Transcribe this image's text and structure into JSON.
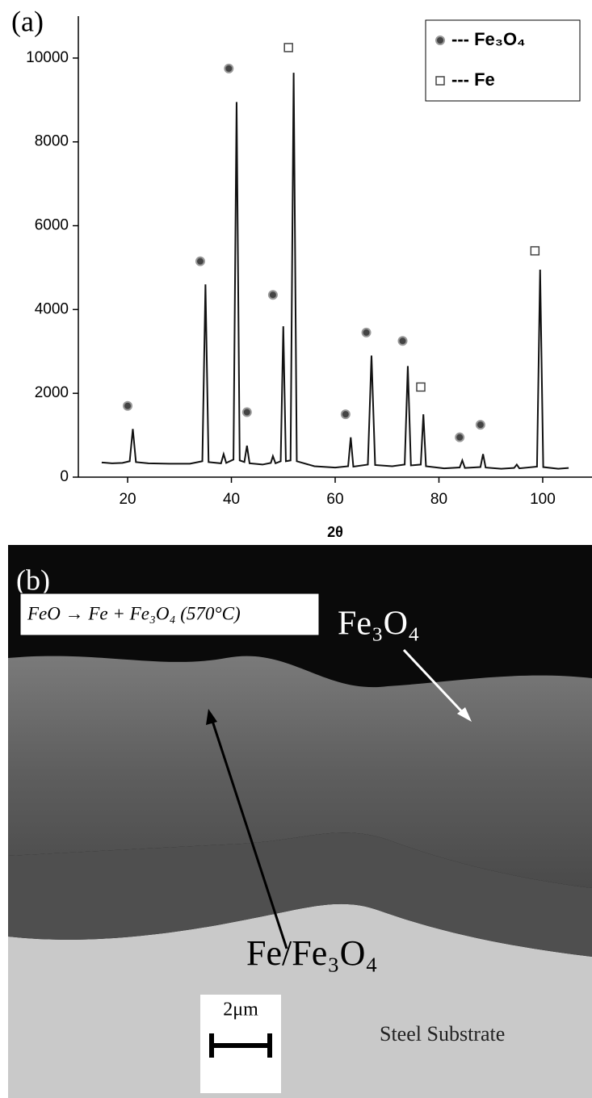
{
  "chart_data": {
    "type": "line",
    "panel_label": "(a)",
    "x_label": "2θ",
    "xlim": [
      10.5,
      109.5
    ],
    "xticks": [
      20,
      40,
      60,
      80,
      100
    ],
    "ylim": [
      0,
      11000
    ],
    "yticks": [
      0,
      2000,
      4000,
      6000,
      8000,
      10000
    ],
    "legend": "top-right",
    "series": [
      {
        "color": "#111111",
        "x": [
          15,
          17,
          19,
          20.4,
          21,
          21.6,
          24,
          28,
          32,
          34.4,
          35,
          35.6,
          38,
          38.5,
          39,
          40.4,
          41,
          41.6,
          42.5,
          43,
          43.5,
          46,
          47.6,
          48,
          48.5,
          49.5,
          50,
          50.5,
          51.4,
          52,
          52.6,
          56,
          60,
          62.5,
          63,
          63.5,
          66.3,
          67,
          67.7,
          71,
          73.4,
          74,
          74.6,
          76.5,
          77,
          77.5,
          81,
          84,
          84.5,
          85,
          88,
          88.5,
          89,
          92,
          94.5,
          95,
          95.5,
          98.9,
          99.5,
          100.1,
          103,
          105
        ],
        "values": [
          350,
          330,
          340,
          380,
          1150,
          360,
          330,
          320,
          320,
          380,
          4600,
          360,
          330,
          550,
          340,
          420,
          8950,
          400,
          360,
          750,
          330,
          300,
          340,
          500,
          330,
          380,
          3600,
          380,
          400,
          9650,
          380,
          260,
          230,
          260,
          950,
          250,
          300,
          2900,
          290,
          260,
          300,
          2650,
          280,
          300,
          1500,
          260,
          210,
          230,
          400,
          220,
          240,
          550,
          230,
          200,
          220,
          300,
          210,
          250,
          4950,
          240,
          200,
          220
        ]
      },
      {
        "name": "--- Fe₃O₄",
        "color": "#444444",
        "marker": "circle",
        "x": [
          20,
          34,
          39.5,
          43,
          48,
          62,
          66,
          73,
          84,
          88
        ],
        "values": [
          1700,
          5150,
          9750,
          1550,
          4350,
          1500,
          3450,
          3250,
          950,
          1250
        ]
      },
      {
        "name": "--- Fe",
        "color": "#444444",
        "marker": "square",
        "x": [
          51,
          76.5,
          98.5
        ],
        "values": [
          10250,
          2150,
          5400
        ]
      }
    ]
  },
  "image_panel": {
    "panel_label": "(b)",
    "top_label": "Fe₃O₄",
    "reaction": "FeO → Fe + Fe₃O₄ (570°C)",
    "lower_label": "Fe/Fe₃O₄",
    "scale_bar": "2μm",
    "substrate_label": "Steel Substrate"
  }
}
